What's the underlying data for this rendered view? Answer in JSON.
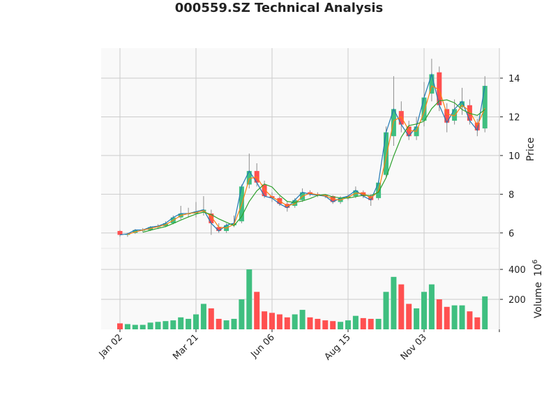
{
  "chart_data": {
    "type": "candlestick",
    "title": "000559.SZ Technical Analysis",
    "period": "weekly approximation of daily candles",
    "colors": {
      "up": "#3fbf80",
      "down": "#ff5050",
      "wick": "#8c8c8c",
      "ma_short": "#1f77b4",
      "ma_mid": "#ff7f0e",
      "ma_long": "#2ca02c",
      "panel_bg": "#f9f9f9",
      "grid": "#cccccc"
    },
    "x_ticks": [
      {
        "label": "Jan 02",
        "index": 0
      },
      {
        "label": "Mar 21",
        "index": 10
      },
      {
        "label": "Jun 06",
        "index": 20
      },
      {
        "label": "Aug 15",
        "index": 30
      },
      {
        "label": "Nov 03",
        "index": 40
      },
      {
        "label": "",
        "index": 49.9
      }
    ],
    "price_panel": {
      "ylabel": "Price",
      "ylim": [
        5.2,
        15.55
      ],
      "yticks": [
        6,
        8,
        10,
        12,
        14
      ],
      "grid": true
    },
    "volume_panel": {
      "ylabel": "Volume",
      "ylabel_exponent": "10",
      "ylabel_exponent_power": "6",
      "ylim": [
        0,
        540
      ],
      "yticks": [
        200,
        400
      ],
      "grid": true
    },
    "ohlc": [
      [
        6.1,
        6.15,
        5.8,
        5.9
      ],
      [
        5.9,
        6.0,
        5.8,
        5.95
      ],
      [
        6.0,
        6.2,
        5.95,
        6.15
      ],
      [
        6.15,
        6.25,
        6.05,
        6.15
      ],
      [
        6.15,
        6.35,
        6.1,
        6.3
      ],
      [
        6.3,
        6.45,
        6.2,
        6.35
      ],
      [
        6.35,
        6.6,
        6.3,
        6.5
      ],
      [
        6.5,
        6.9,
        6.45,
        6.8
      ],
      [
        6.8,
        7.4,
        6.7,
        7.0
      ],
      [
        7.0,
        7.3,
        6.8,
        7.0
      ],
      [
        7.0,
        7.6,
        6.8,
        7.1
      ],
      [
        7.1,
        7.9,
        6.9,
        7.2
      ],
      [
        7.0,
        7.2,
        5.9,
        6.5
      ],
      [
        6.3,
        6.5,
        6.0,
        6.1
      ],
      [
        6.1,
        6.5,
        6.0,
        6.4
      ],
      [
        6.4,
        6.9,
        6.3,
        6.5
      ],
      [
        6.6,
        8.5,
        6.5,
        8.4
      ],
      [
        8.5,
        10.1,
        8.3,
        9.2
      ],
      [
        9.2,
        9.6,
        8.4,
        8.6
      ],
      [
        8.5,
        8.7,
        7.8,
        7.9
      ],
      [
        7.9,
        8.1,
        7.6,
        7.8
      ],
      [
        7.8,
        7.9,
        7.4,
        7.5
      ],
      [
        7.5,
        7.6,
        7.1,
        7.3
      ],
      [
        7.4,
        7.8,
        7.3,
        7.7
      ],
      [
        7.7,
        8.3,
        7.6,
        8.1
      ],
      [
        8.1,
        8.2,
        7.9,
        8.0
      ],
      [
        8.0,
        8.1,
        7.85,
        7.95
      ],
      [
        7.95,
        8.0,
        7.8,
        7.9
      ],
      [
        7.9,
        7.95,
        7.5,
        7.6
      ],
      [
        7.6,
        7.9,
        7.5,
        7.8
      ],
      [
        7.8,
        8.0,
        7.7,
        7.9
      ],
      [
        7.9,
        8.4,
        7.8,
        8.2
      ],
      [
        8.1,
        8.2,
        7.8,
        7.9
      ],
      [
        7.9,
        8.0,
        7.4,
        7.7
      ],
      [
        7.8,
        8.7,
        7.7,
        8.6
      ],
      [
        9.0,
        11.5,
        8.9,
        11.2
      ],
      [
        11.0,
        14.1,
        10.5,
        12.4
      ],
      [
        12.3,
        12.8,
        11.2,
        11.6
      ],
      [
        11.5,
        11.8,
        10.8,
        11.0
      ],
      [
        11.0,
        12.0,
        10.8,
        11.5
      ],
      [
        11.8,
        13.8,
        11.5,
        13.0
      ],
      [
        13.2,
        15.0,
        12.8,
        14.2
      ],
      [
        14.3,
        14.6,
        12.3,
        12.6
      ],
      [
        12.4,
        12.7,
        11.2,
        11.7
      ],
      [
        11.8,
        12.9,
        11.6,
        12.4
      ],
      [
        12.5,
        13.5,
        12.1,
        12.8
      ],
      [
        12.6,
        12.9,
        11.6,
        11.8
      ],
      [
        11.7,
        11.9,
        11.0,
        11.3
      ],
      [
        11.4,
        14.1,
        11.2,
        13.6
      ]
    ],
    "volume_millions": [
      40,
      35,
      30,
      30,
      45,
      50,
      55,
      60,
      80,
      70,
      100,
      170,
      140,
      70,
      60,
      70,
      200,
      400,
      250,
      120,
      110,
      100,
      80,
      100,
      130,
      80,
      70,
      60,
      55,
      50,
      60,
      90,
      75,
      70,
      70,
      250,
      350,
      300,
      170,
      140,
      250,
      300,
      200,
      150,
      160,
      160,
      120,
      80,
      220
    ]
  }
}
